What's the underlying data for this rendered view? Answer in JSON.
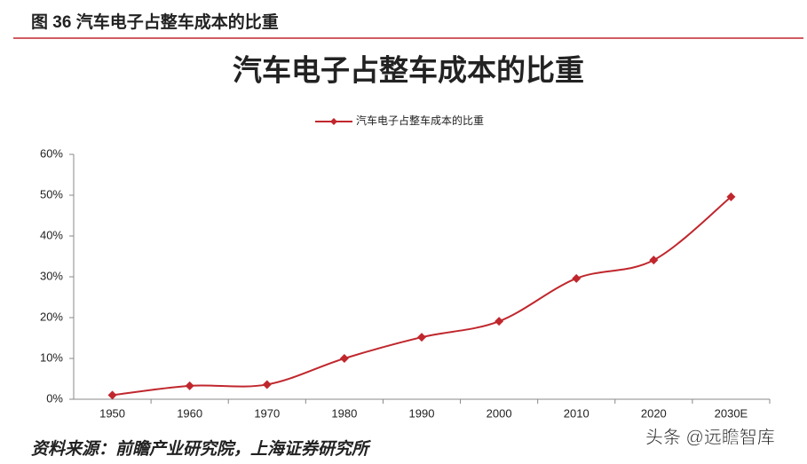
{
  "header": "图 36  汽车电子占整车成本的比重",
  "source": "资料来源：前瞻产业研究院，上海证券研究所",
  "watermark": "头条 @远瞻智库",
  "chart_data": {
    "type": "line",
    "title": "汽车电子占整车成本的比重",
    "categories": [
      "1950",
      "1960",
      "1970",
      "1980",
      "1990",
      "2000",
      "2010",
      "2020",
      "2030E"
    ],
    "series": [
      {
        "name": "汽车电子占整车成本的比重",
        "color": "#c0272d",
        "values": [
          1,
          3.3,
          3.6,
          10,
          15.2,
          19.1,
          29.6,
          34.1,
          49.6
        ]
      }
    ],
    "ylim": [
      0,
      60
    ],
    "yticks": [
      {
        "value": 0,
        "label": "0%"
      },
      {
        "value": 10,
        "label": "10%"
      },
      {
        "value": 20,
        "label": "20%"
      },
      {
        "value": 30,
        "label": "30%"
      },
      {
        "value": 40,
        "label": "40%"
      },
      {
        "value": 50,
        "label": "50%"
      },
      {
        "value": 60,
        "label": "60%"
      }
    ],
    "grid": false,
    "legend": "top",
    "smooth": true
  }
}
